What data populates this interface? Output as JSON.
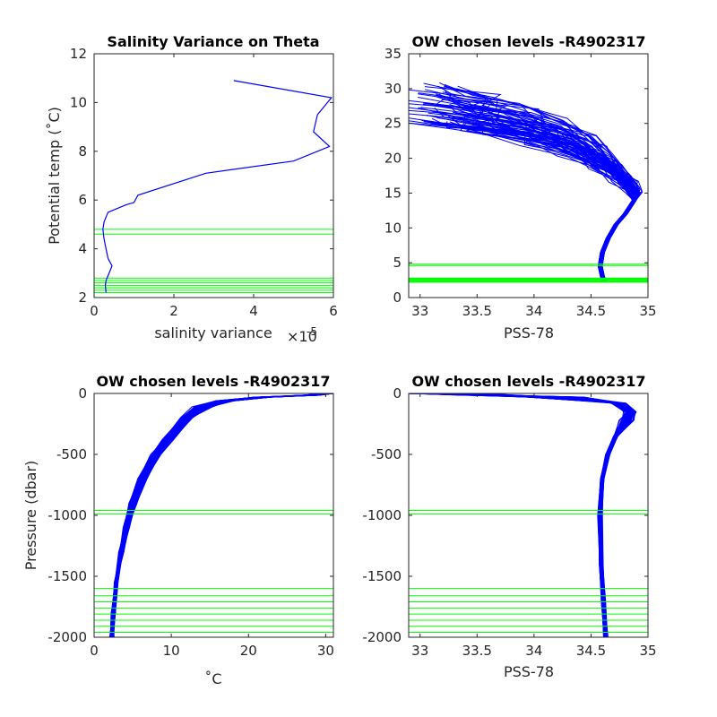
{
  "colors": {
    "profile_color": "#0000ff",
    "level_color": "#00ff00",
    "axis_color": "#262626"
  },
  "chart_data": [
    {
      "type": "line",
      "title": "Salinity Variance on Theta",
      "xlabel": "salinity variance",
      "x_exponent_base": "×10",
      "x_exponent": "-5",
      "ylabel": "Potential temp (˚C)",
      "xlim": [
        0,
        6
      ],
      "ylim": [
        2,
        12
      ],
      "xticks": [
        "0",
        "2",
        "4",
        "6"
      ],
      "yticks": [
        "2",
        "4",
        "6",
        "8",
        "10",
        "12"
      ],
      "grid": false,
      "series": [
        {
          "x": [
            0.3,
            0.28,
            0.3,
            0.35,
            0.4,
            0.45,
            0.35,
            0.3,
            0.25,
            0.22,
            0.25,
            0.3,
            0.35,
            0.5,
            0.8,
            1.0,
            1.1,
            2.8,
            5.0,
            5.9,
            5.5,
            5.6,
            5.95,
            3.5
          ],
          "y": [
            2.2,
            2.5,
            2.7,
            2.9,
            3.1,
            3.3,
            3.6,
            4.0,
            4.4,
            4.8,
            5.1,
            5.3,
            5.5,
            5.6,
            5.8,
            5.9,
            6.2,
            7.1,
            7.6,
            8.2,
            8.8,
            9.5,
            10.2,
            10.9
          ]
        }
      ],
      "level_lines": [
        2.2,
        2.3,
        2.4,
        2.5,
        2.6,
        2.7,
        2.8,
        4.6,
        4.8
      ]
    },
    {
      "type": "line",
      "title": "OW chosen levels -R4902317",
      "xlabel": "PSS-78",
      "ylabel": "",
      "xlim": [
        32.9,
        35
      ],
      "ylim": [
        0,
        35
      ],
      "xticks": [
        "33",
        "33.5",
        "34",
        "34.5",
        "35"
      ],
      "yticks": [
        "0",
        "5",
        "10",
        "15",
        "20",
        "25",
        "30",
        "35"
      ],
      "grid": false,
      "mean_profile": {
        "salinity": [
          34.62,
          34.6,
          34.58,
          34.6,
          34.65,
          34.72,
          34.8,
          34.88,
          34.85,
          34.75,
          34.55,
          34.3,
          34.0,
          33.6,
          33.3,
          33.0
        ],
        "theta": [
          2.2,
          3.0,
          4.5,
          6.5,
          8.5,
          10.5,
          12.0,
          14.0,
          15.5,
          17.0,
          19.5,
          22.0,
          24.0,
          25.8,
          27.0,
          28.3
        ]
      },
      "surface_range": {
        "salinity": [
          32.9,
          34.7
        ],
        "theta": [
          25.0,
          30.8
        ]
      },
      "level_lines": [
        2.2,
        2.3,
        2.4,
        2.5,
        2.6,
        2.7,
        2.8,
        4.6,
        4.8
      ]
    },
    {
      "type": "line",
      "title": "OW chosen levels -R4902317",
      "xlabel": "˚C",
      "ylabel": "Pressure (dbar)",
      "xlim": [
        0,
        31
      ],
      "ylim": [
        -2000,
        0
      ],
      "xticks": [
        "0",
        "10",
        "20",
        "30"
      ],
      "yticks": [
        "0",
        "-500",
        "-1000",
        "-1500",
        "-2000"
      ],
      "grid": false,
      "mean_profile": {
        "temperature": [
          30.5,
          28.0,
          22.0,
          17.0,
          14.0,
          12.0,
          9.5,
          8.0,
          6.3,
          5.0,
          4.2,
          3.5,
          2.9,
          2.5,
          2.3
        ],
        "pressure": [
          0,
          -15,
          -30,
          -60,
          -110,
          -200,
          -380,
          -500,
          -700,
          -900,
          -1100,
          -1300,
          -1550,
          -1800,
          -2000
        ]
      },
      "level_lines": [
        -960,
        -990,
        -1600,
        -1660,
        -1710,
        -1760,
        -1810,
        -1860,
        -1910,
        -1960
      ]
    },
    {
      "type": "line",
      "title": "OW chosen levels -R4902317",
      "xlabel": "PSS-78",
      "ylabel": "",
      "xlim": [
        32.9,
        35
      ],
      "ylim": [
        -2000,
        0
      ],
      "xticks": [
        "33",
        "33.5",
        "34",
        "34.5",
        "35"
      ],
      "yticks": [
        "0",
        "-500",
        "-1000",
        "-1500",
        "-2000"
      ],
      "grid": false,
      "mean_profile": {
        "salinity": [
          32.95,
          33.5,
          34.2,
          34.75,
          34.85,
          34.82,
          34.72,
          34.65,
          34.6,
          34.58,
          34.59,
          34.61,
          34.63
        ],
        "pressure": [
          0,
          -10,
          -30,
          -80,
          -150,
          -220,
          -350,
          -500,
          -700,
          -1000,
          -1400,
          -1700,
          -2000
        ]
      },
      "level_lines": [
        -960,
        -990,
        -1600,
        -1660,
        -1710,
        -1760,
        -1810,
        -1860,
        -1910,
        -1960
      ]
    }
  ]
}
